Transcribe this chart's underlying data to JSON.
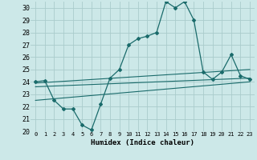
{
  "xlabel": "Humidex (Indice chaleur)",
  "background_color": "#cce8e8",
  "grid_color": "#aacccc",
  "line_color": "#1a6b6b",
  "xlim": [
    -0.5,
    23.5
  ],
  "ylim": [
    20,
    30.5
  ],
  "xticks": [
    0,
    1,
    2,
    3,
    4,
    5,
    6,
    7,
    8,
    9,
    10,
    11,
    12,
    13,
    14,
    15,
    16,
    17,
    18,
    19,
    20,
    21,
    22,
    23
  ],
  "yticks": [
    20,
    21,
    22,
    23,
    24,
    25,
    26,
    27,
    28,
    29,
    30
  ],
  "main_x": [
    0,
    1,
    2,
    3,
    4,
    5,
    6,
    7,
    8,
    9,
    10,
    11,
    12,
    13,
    14,
    15,
    16,
    17,
    18,
    19,
    20,
    21,
    22,
    23
  ],
  "main_y": [
    24.0,
    24.1,
    22.5,
    21.8,
    21.8,
    20.5,
    20.1,
    22.2,
    24.3,
    25.0,
    27.0,
    27.5,
    27.7,
    28.0,
    30.5,
    30.0,
    30.5,
    29.0,
    24.8,
    24.2,
    24.8,
    26.2,
    24.5,
    24.2
  ],
  "line2_x": [
    0,
    23
  ],
  "line2_y": [
    23.9,
    25.0
  ],
  "line3_x": [
    0,
    23
  ],
  "line3_y": [
    23.6,
    24.3
  ],
  "line4_x": [
    0,
    23
  ],
  "line4_y": [
    22.5,
    24.0
  ]
}
